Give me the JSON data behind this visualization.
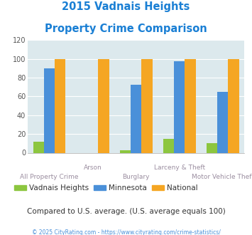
{
  "title_line1": "2015 Vadnais Heights",
  "title_line2": "Property Crime Comparison",
  "categories": [
    "All Property Crime",
    "Arson",
    "Burglary",
    "Larceny & Theft",
    "Motor Vehicle Theft"
  ],
  "vadnais_heights": [
    12,
    0,
    3,
    15,
    10
  ],
  "minnesota": [
    90,
    0,
    72,
    97,
    65
  ],
  "national": [
    100,
    100,
    100,
    100,
    100
  ],
  "color_vadnais": "#8cc63f",
  "color_minnesota": "#4a90d9",
  "color_national": "#f5a623",
  "color_title": "#1a7fd4",
  "color_axis_label": "#9b8ea0",
  "color_compare_text": "#333333",
  "color_copyright": "#4a90d9",
  "ylim": [
    0,
    120
  ],
  "yticks": [
    0,
    20,
    40,
    60,
    80,
    100,
    120
  ],
  "legend_labels": [
    "Vadnais Heights",
    "Minnesota",
    "National"
  ],
  "compare_text": "Compared to U.S. average. (U.S. average equals 100)",
  "copyright_text": "© 2025 CityRating.com - https://www.cityrating.com/crime-statistics/",
  "background_color": "#dce9ed",
  "fig_background": "#ffffff",
  "bar_width": 0.25
}
